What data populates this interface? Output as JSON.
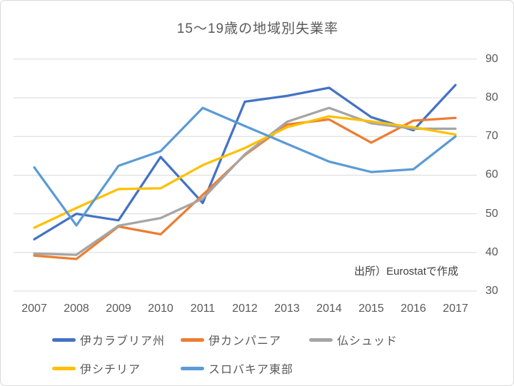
{
  "chart": {
    "title": "15〜19歳の地域別失業率",
    "source_note": "出所）Eurostatで作成"
  },
  "chart_data": {
    "type": "line",
    "title": "15〜19歳の地域別失業率",
    "categories": [
      "2007",
      "2008",
      "2009",
      "2010",
      "2011",
      "2012",
      "2013",
      "2014",
      "2015",
      "2016",
      "2017"
    ],
    "series": [
      {
        "name": "伊カラブリア州",
        "color": "#4472C4",
        "values": [
          43.4,
          50.0,
          48.3,
          64.7,
          52.8,
          79.0,
          80.5,
          82.6,
          75.0,
          71.6,
          83.3
        ]
      },
      {
        "name": "伊カンパニア",
        "color": "#ED7D31",
        "values": [
          39.2,
          38.3,
          46.7,
          44.7,
          54.9,
          65.2,
          73.1,
          74.4,
          68.4,
          74.1,
          74.8
        ]
      },
      {
        "name": "仏シュッド",
        "color": "#A5A5A5",
        "values": [
          39.7,
          39.4,
          46.9,
          48.9,
          53.9,
          65.4,
          73.8,
          77.4,
          73.4,
          72.0,
          72.0
        ]
      },
      {
        "name": "伊シチリア",
        "color": "#FFC000",
        "values": [
          46.4,
          51.5,
          56.4,
          56.6,
          62.6,
          67.0,
          72.4,
          75.2,
          73.9,
          72.4,
          70.5
        ]
      },
      {
        "name": "スロバキア東部",
        "color": "#5B9BD5",
        "values": [
          62.0,
          47.0,
          62.4,
          66.2,
          77.4,
          72.7,
          68.1,
          63.5,
          60.8,
          61.5,
          70.0
        ]
      }
    ],
    "xlabel": "",
    "ylabel": "",
    "ylim": [
      30,
      90
    ],
    "y_ticks": [
      30,
      40,
      50,
      60,
      70,
      80,
      90
    ],
    "y_axis_side": "right",
    "grid": true,
    "gridline_color": "#d9d9d9",
    "legend_position": "bottom",
    "annotation": "出所）Eurostatで作成"
  }
}
